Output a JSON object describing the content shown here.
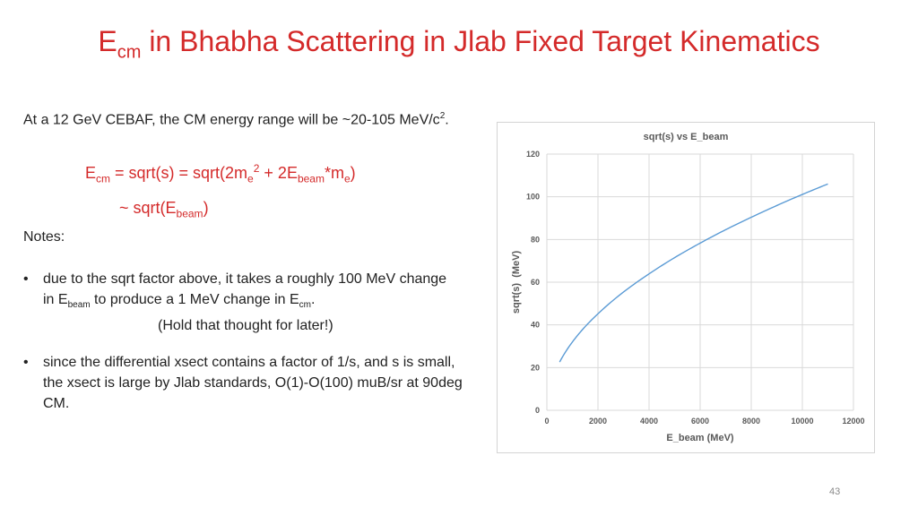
{
  "slide": {
    "title_main": "E",
    "title_sub": "cm",
    "title_rest": " in Bhabha Scattering in Jlab Fixed Target Kinematics",
    "intro_text": "At a 12 GeV CEBAF, the CM energy range will be ~20-105 MeV/c",
    "intro_sup": "2",
    "intro_end": ".",
    "formula": {
      "l1_a": "E",
      "l1_a_sub": "cm",
      "l1_b": " = sqrt(s) = sqrt(2m",
      "l1_b_sub": "e",
      "l1_b_sup": "2",
      "l1_c": " + 2E",
      "l1_c_sub": "beam",
      "l1_d": "*m",
      "l1_d_sub": "e",
      "l1_e": ")",
      "l2_a": "~ sqrt(E",
      "l2_a_sub": "beam",
      "l2_b": ")"
    },
    "notes_label": "Notes:",
    "bullet_char": "•",
    "bullet1": {
      "line1": "due to the sqrt factor above, it takes a roughly 100 MeV change",
      "l2_a": "in E",
      "l2_a_sub": "beam",
      "l2_b": " to produce a 1 MeV change in E",
      "l2_b_sub": "cm",
      "l2_c": ".",
      "line3": "(Hold that thought for later!)"
    },
    "bullet2": {
      "line1": "since the differential xsect contains a factor of 1/s, and s is small,",
      "line2": "the xsect is large by Jlab standards, O(1)-O(100) muB/sr at 90deg",
      "line3": "CM."
    },
    "page_number": "43"
  },
  "chart_data": {
    "type": "line",
    "title": "sqrt(s) vs E_beam",
    "xlabel": "E_beam (MeV)",
    "ylabel": "sqrt(s)  (MeV)",
    "xlim": [
      0,
      12000
    ],
    "ylim": [
      0,
      120
    ],
    "xticks": [
      0,
      2000,
      4000,
      6000,
      8000,
      10000,
      12000
    ],
    "yticks": [
      0,
      20,
      40,
      60,
      80,
      100,
      120
    ],
    "series": [
      {
        "name": "sqrt(s)",
        "color": "#5b9bd5",
        "x": [
          500,
          1000,
          1500,
          2000,
          3000,
          4000,
          5000,
          6000,
          7000,
          8000,
          9000,
          10000,
          11000
        ],
        "y": [
          22.6,
          32.0,
          39.2,
          45.2,
          55.4,
          63.9,
          71.5,
          78.3,
          84.6,
          90.4,
          95.9,
          101.1,
          106.0
        ]
      }
    ],
    "grid": true
  }
}
